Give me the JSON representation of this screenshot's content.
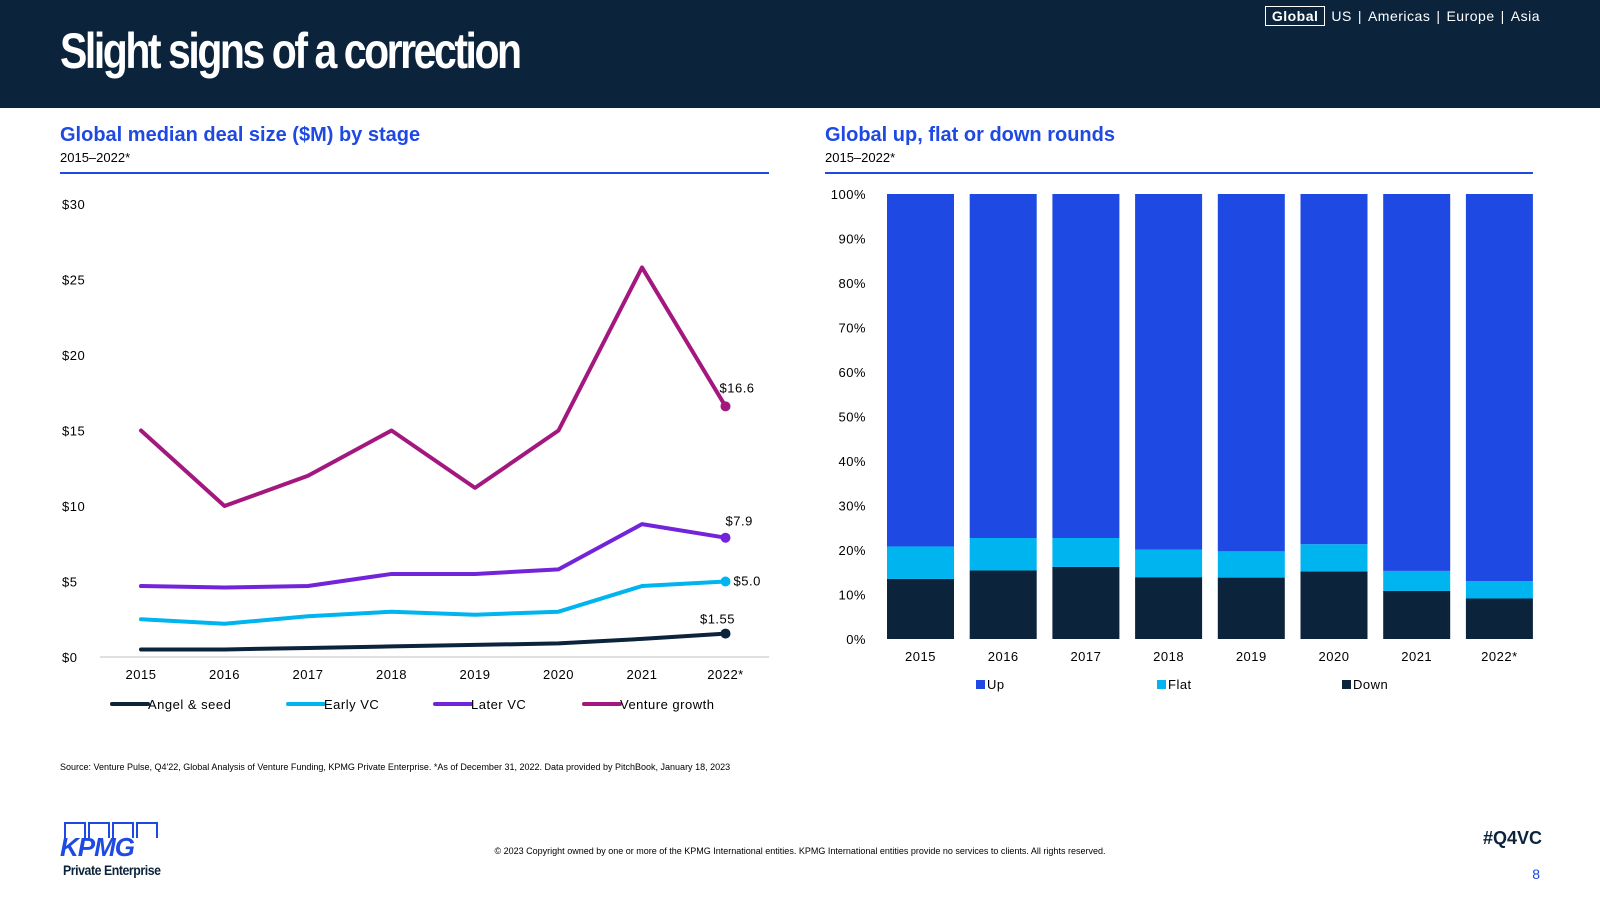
{
  "header": {
    "title": "Slight signs of a correction",
    "regions": [
      "Global",
      "US",
      "Americas",
      "Europe",
      "Asia"
    ],
    "active_region": "Global",
    "separator": "|"
  },
  "colors": {
    "header_bg": "#0c233c",
    "accent": "#1e49e2",
    "angel_seed": "#0c233c",
    "early_vc": "#00b4ef",
    "later_vc": "#7224da",
    "venture_growth": "#a3177f",
    "up": "#1e49e2",
    "flat": "#00b4ef",
    "down": "#0c233c"
  },
  "left_panel": {
    "title": "Global median deal size ($M) by stage",
    "subtitle": "2015–2022*"
  },
  "right_panel": {
    "title": "Global up, flat or down rounds",
    "subtitle": "2015–2022*"
  },
  "chart_data": [
    {
      "type": "line",
      "title": "Global median deal size ($M) by stage",
      "x": [
        "2015",
        "2016",
        "2017",
        "2018",
        "2019",
        "2020",
        "2021",
        "2022*"
      ],
      "ylim": [
        0,
        30
      ],
      "yticks": [
        0,
        5,
        10,
        15,
        20,
        25,
        30
      ],
      "ytick_labels": [
        "$0",
        "$5",
        "$10",
        "$15",
        "$20",
        "$25",
        "$30"
      ],
      "grid": false,
      "legend": "bottom",
      "series": [
        {
          "name": "Angel & seed",
          "color_key": "angel_seed",
          "values": [
            0.5,
            0.5,
            0.6,
            0.7,
            0.8,
            0.9,
            1.2,
            1.55
          ],
          "end_label": "$1.55"
        },
        {
          "name": "Early VC",
          "color_key": "early_vc",
          "values": [
            2.5,
            2.2,
            2.7,
            3.0,
            2.8,
            3.0,
            4.7,
            5.0
          ],
          "end_label": "$5.0"
        },
        {
          "name": "Later VC",
          "color_key": "later_vc",
          "values": [
            4.7,
            4.6,
            4.7,
            5.5,
            5.5,
            5.8,
            8.8,
            7.9
          ],
          "end_label": "$7.9"
        },
        {
          "name": "Venture growth",
          "color_key": "venture_growth",
          "values": [
            15.0,
            10.0,
            12.0,
            15.0,
            11.2,
            15.0,
            25.8,
            16.6
          ],
          "end_label": "$16.6"
        }
      ]
    },
    {
      "type": "bar",
      "stacked": true,
      "title": "Global up, flat or down rounds",
      "categories": [
        "2015",
        "2016",
        "2017",
        "2018",
        "2019",
        "2020",
        "2021",
        "2022*"
      ],
      "ylim": [
        0,
        100
      ],
      "yticks": [
        0,
        10,
        20,
        30,
        40,
        50,
        60,
        70,
        80,
        90,
        100
      ],
      "ytick_labels": [
        "0%",
        "10%",
        "20%",
        "30%",
        "40%",
        "50%",
        "60%",
        "70%",
        "80%",
        "90%",
        "100%"
      ],
      "grid": false,
      "legend": "bottom",
      "series": [
        {
          "name": "Up",
          "color_key": "up",
          "values": [
            79.2,
            77.3,
            77.3,
            79.9,
            80.3,
            78.7,
            84.7,
            87.0
          ]
        },
        {
          "name": "Flat",
          "color_key": "flat",
          "values": [
            7.3,
            7.3,
            6.5,
            6.2,
            5.9,
            6.1,
            4.5,
            3.9
          ]
        },
        {
          "name": "Down",
          "color_key": "down",
          "values": [
            13.5,
            15.4,
            16.2,
            13.9,
            13.8,
            15.2,
            10.8,
            9.1
          ]
        }
      ]
    }
  ],
  "footer": {
    "source": "Source: Venture Pulse, Q4'22, Global Analysis of Venture Funding, KPMG Private Enterprise. *As of December 31, 2022. Data provided by PitchBook, January 18, 2023",
    "copyright": "© 2023 Copyright owned by one or more of the KPMG International entities. KPMG International entities provide no services to clients. All rights reserved.",
    "hashtag": "#Q4VC",
    "page_number": "8",
    "logo_word": "KPMG",
    "logo_sub": "Private Enterprise"
  }
}
